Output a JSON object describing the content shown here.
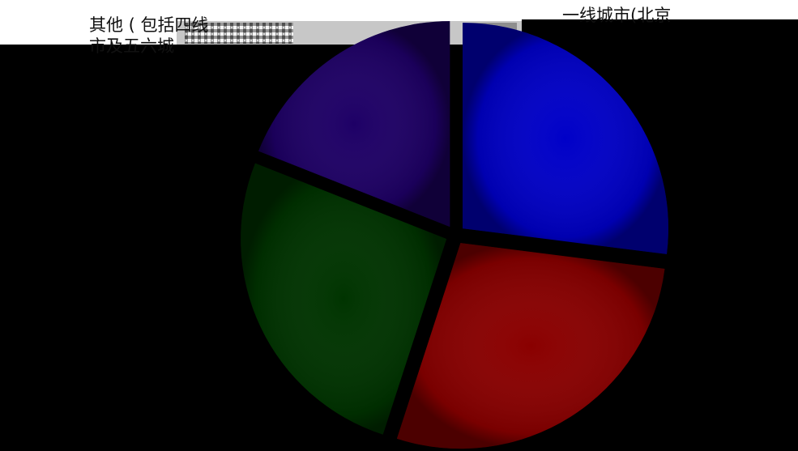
{
  "chart_data": {
    "type": "pie",
    "title": "",
    "labels_visible": [
      "其他 ( 包括四线",
      "市及五六城",
      "一线城市(北京"
    ],
    "slices": [
      {
        "value": 27,
        "color": "#0000c8"
      },
      {
        "value": 28,
        "color": "#8a0000"
      },
      {
        "value": 26,
        "color": "#003400"
      },
      {
        "value": 19,
        "color": "#1e0066"
      }
    ]
  }
}
